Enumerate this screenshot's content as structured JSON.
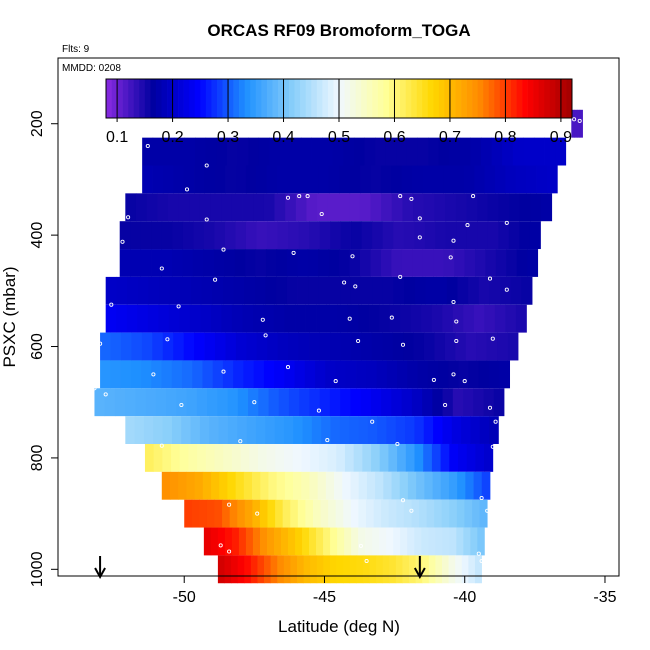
{
  "chart_data": {
    "type": "heatmap",
    "title": "ORCAS RF09 Bromoform_TOGA",
    "flights_label": "Flts: 9",
    "date_label": "MMDD: 0208",
    "xlabel": "Latitude (deg N)",
    "ylabel": "PSXC (mbar)",
    "xlim": [
      -54.5,
      -34.5
    ],
    "ylim": [
      1012,
      82
    ],
    "y_reversed": true,
    "x_ticks": [
      -50,
      -45,
      -40,
      -35
    ],
    "y_ticks": [
      200,
      400,
      600,
      800,
      1000
    ],
    "colorbar": {
      "range": [
        0.08,
        0.92
      ],
      "ticks": [
        0.1,
        0.2,
        0.3,
        0.4,
        0.5,
        0.6,
        0.7,
        0.8,
        0.9
      ],
      "palette": [
        "#8a2be2",
        "#0000a0",
        "#0000ff",
        "#1e90ff",
        "#87cefa",
        "#f0f8ff",
        "#ffff99",
        "#ffd700",
        "#ff8c00",
        "#ff0000",
        "#a00000"
      ]
    },
    "grid": false,
    "layers": [
      {
        "p": 200,
        "lat_min": -36.2,
        "lat_max": -35.8,
        "values": [
          0.12
        ]
      },
      {
        "p": 250,
        "lat_min": -51.5,
        "lat_max": -36.4,
        "values": [
          0.17,
          0.17,
          0.16,
          0.17,
          0.17,
          0.16,
          0.16,
          0.17,
          0.2,
          0.2
        ]
      },
      {
        "p": 300,
        "lat_min": -51.5,
        "lat_max": -36.7,
        "values": [
          0.18,
          0.17,
          0.16,
          0.17,
          0.17,
          0.16,
          0.17,
          0.17,
          0.19,
          0.2
        ]
      },
      {
        "p": 350,
        "lat_min": -52.1,
        "lat_max": -36.9,
        "values": [
          0.16,
          0.15,
          0.15,
          0.15,
          0.11,
          0.11,
          0.14,
          0.15,
          0.16,
          0.17
        ]
      },
      {
        "p": 400,
        "lat_min": -52.3,
        "lat_max": -37.3,
        "values": [
          0.16,
          0.16,
          0.15,
          0.13,
          0.14,
          0.16,
          0.14,
          0.15,
          0.15,
          0.17
        ]
      },
      {
        "p": 450,
        "lat_min": -52.3,
        "lat_max": -37.4,
        "values": [
          0.18,
          0.18,
          0.17,
          0.16,
          0.17,
          0.16,
          0.13,
          0.13,
          0.15,
          0.17
        ]
      },
      {
        "p": 500,
        "lat_min": -52.8,
        "lat_max": -37.6,
        "values": [
          0.2,
          0.19,
          0.18,
          0.17,
          0.16,
          0.16,
          0.16,
          0.17,
          0.15,
          0.16
        ]
      },
      {
        "p": 550,
        "lat_min": -52.8,
        "lat_max": -37.8,
        "values": [
          0.24,
          0.22,
          0.2,
          0.18,
          0.17,
          0.17,
          0.16,
          0.15,
          0.13,
          0.15
        ]
      },
      {
        "p": 600,
        "lat_min": -53.0,
        "lat_max": -38.1,
        "values": [
          0.31,
          0.29,
          0.25,
          0.21,
          0.19,
          0.18,
          0.17,
          0.16,
          0.14,
          0.15
        ]
      },
      {
        "p": 650,
        "lat_min": -53.0,
        "lat_max": -38.4,
        "values": [
          0.34,
          0.33,
          0.31,
          0.27,
          0.24,
          0.2,
          0.19,
          0.17,
          0.16,
          0.17
        ]
      },
      {
        "p": 700,
        "lat_min": -53.2,
        "lat_max": -38.6,
        "values": [
          0.38,
          0.37,
          0.36,
          0.34,
          0.3,
          0.27,
          0.24,
          0.2,
          0.14,
          0.16
        ]
      },
      {
        "p": 750,
        "lat_min": -52.1,
        "lat_max": -38.8,
        "values": [
          0.44,
          0.42,
          0.38,
          0.36,
          0.34,
          0.31,
          0.3,
          0.28,
          0.22,
          0.18
        ]
      },
      {
        "p": 800,
        "lat_min": -51.4,
        "lat_max": -39.0,
        "values": [
          0.62,
          0.58,
          0.55,
          0.52,
          0.5,
          0.48,
          0.42,
          0.34,
          0.24,
          0.2
        ]
      },
      {
        "p": 850,
        "lat_min": -50.8,
        "lat_max": -39.1,
        "values": [
          0.75,
          0.72,
          0.66,
          0.6,
          0.56,
          0.5,
          0.46,
          0.4,
          0.35,
          0.28
        ]
      },
      {
        "p": 900,
        "lat_min": -50.0,
        "lat_max": -39.2,
        "values": [
          0.8,
          0.79,
          0.72,
          0.62,
          0.55,
          0.5,
          0.47,
          0.45,
          0.42,
          0.38
        ]
      },
      {
        "p": 950,
        "lat_min": -49.3,
        "lat_max": -39.3,
        "values": [
          0.86,
          0.82,
          0.74,
          0.68,
          0.6,
          0.52,
          0.5,
          0.47,
          0.46,
          0.4
        ]
      },
      {
        "p": 1000,
        "lat_min": -48.8,
        "lat_max": -39.4,
        "values": [
          0.88,
          0.83,
          0.76,
          0.7,
          0.67,
          0.66,
          0.64,
          0.6,
          0.52,
          0.46
        ]
      }
    ],
    "sample_points": [
      [
        -36.1,
        192
      ],
      [
        -35.9,
        195
      ],
      [
        -51.3,
        240
      ],
      [
        -49.2,
        275
      ],
      [
        -51.8,
        320
      ],
      [
        -49.9,
        318
      ],
      [
        -46.3,
        333
      ],
      [
        -45.9,
        330
      ],
      [
        -45.6,
        330
      ],
      [
        -42.3,
        330
      ],
      [
        -41.9,
        335
      ],
      [
        -39.7,
        330
      ],
      [
        -52.0,
        368
      ],
      [
        -49.2,
        372
      ],
      [
        -45.1,
        362
      ],
      [
        -41.6,
        370
      ],
      [
        -39.9,
        382
      ],
      [
        -38.5,
        378
      ],
      [
        -52.2,
        412
      ],
      [
        -48.6,
        426
      ],
      [
        -46.1,
        432
      ],
      [
        -44.0,
        438
      ],
      [
        -41.6,
        404
      ],
      [
        -40.4,
        410
      ],
      [
        -40.5,
        440
      ],
      [
        -52.6,
        470
      ],
      [
        -50.8,
        460
      ],
      [
        -48.9,
        480
      ],
      [
        -44.3,
        485
      ],
      [
        -43.9,
        492
      ],
      [
        -42.3,
        475
      ],
      [
        -39.1,
        478
      ],
      [
        -38.5,
        498
      ],
      [
        -52.6,
        525
      ],
      [
        -50.2,
        528
      ],
      [
        -47.2,
        552
      ],
      [
        -44.1,
        550
      ],
      [
        -42.6,
        548
      ],
      [
        -40.4,
        520
      ],
      [
        -40.3,
        555
      ],
      [
        -53.0,
        595
      ],
      [
        -50.6,
        587
      ],
      [
        -47.1,
        580
      ],
      [
        -43.8,
        590
      ],
      [
        -42.2,
        597
      ],
      [
        -40.3,
        590
      ],
      [
        -39.0,
        586
      ],
      [
        -53.2,
        675
      ],
      [
        -51.1,
        650
      ],
      [
        -48.6,
        645
      ],
      [
        -46.3,
        637
      ],
      [
        -44.6,
        662
      ],
      [
        -41.1,
        660
      ],
      [
        -40.4,
        650
      ],
      [
        -40.0,
        662
      ],
      [
        -52.8,
        686
      ],
      [
        -50.1,
        705
      ],
      [
        -47.5,
        700
      ],
      [
        -45.2,
        715
      ],
      [
        -43.3,
        735
      ],
      [
        -40.7,
        705
      ],
      [
        -39.1,
        710
      ],
      [
        -38.9,
        735
      ],
      [
        -50.8,
        778
      ],
      [
        -48.0,
        770
      ],
      [
        -44.9,
        768
      ],
      [
        -42.4,
        775
      ],
      [
        -39.0,
        780
      ],
      [
        -48.4,
        884
      ],
      [
        -47.4,
        900
      ],
      [
        -42.2,
        876
      ],
      [
        -41.9,
        895
      ],
      [
        -39.4,
        872
      ],
      [
        -39.2,
        895
      ],
      [
        -48.7,
        957
      ],
      [
        -48.4,
        968
      ],
      [
        -43.7,
        958
      ],
      [
        -43.5,
        985
      ],
      [
        -39.5,
        972
      ],
      [
        -39.4,
        985
      ]
    ],
    "arrows_lat": [
      -53.0,
      -41.6
    ],
    "colors": {
      "background": "#ffffff",
      "text": "#000000",
      "sample_marker": "#ffffff",
      "arrow": "#000000"
    }
  }
}
